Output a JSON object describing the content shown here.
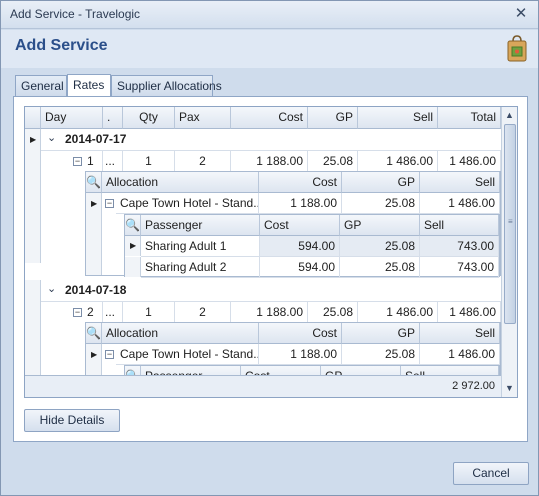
{
  "window": {
    "title": "Add Service - Travelogic"
  },
  "header": {
    "title": "Add Service",
    "icon": "shopping-bag-icon"
  },
  "tabs": [
    {
      "label": "General",
      "active": false
    },
    {
      "label": "Rates",
      "active": true
    },
    {
      "label": "Supplier Allocations",
      "active": false
    }
  ],
  "grid": {
    "columns": [
      "Day",
      ".",
      "Qty",
      "Pax",
      "Cost",
      "GP",
      "Sell",
      "Total"
    ],
    "groups": [
      {
        "date": "2014-07-17",
        "row": {
          "day": "1",
          "dot": "...",
          "qty": "1",
          "pax": "2",
          "cost": "1 188.00",
          "gp": "25.08",
          "sell": "1 486.00",
          "total": "1 486.00"
        },
        "allocation_columns": [
          "Allocation",
          "Cost",
          "GP",
          "Sell"
        ],
        "allocation": {
          "name": "Cape Town Hotel  - Stand...",
          "cost": "1 188.00",
          "gp": "25.08",
          "sell": "1 486.00"
        },
        "passenger_columns": [
          "Passenger",
          "Cost",
          "GP",
          "Sell"
        ],
        "passengers": [
          {
            "name": "Sharing Adult 1",
            "cost": "594.00",
            "gp": "25.08",
            "sell": "743.00"
          },
          {
            "name": "Sharing Adult 2",
            "cost": "594.00",
            "gp": "25.08",
            "sell": "743.00"
          }
        ]
      },
      {
        "date": "2014-07-18",
        "row": {
          "day": "2",
          "dot": "...",
          "qty": "1",
          "pax": "2",
          "cost": "1 188.00",
          "gp": "25.08",
          "sell": "1 486.00",
          "total": "1 486.00"
        },
        "allocation_columns": [
          "Allocation",
          "Cost",
          "GP",
          "Sell"
        ],
        "allocation": {
          "name": "Cape Town Hotel  - Stand...",
          "cost": "1 188.00",
          "gp": "25.08",
          "sell": "1 486.00"
        },
        "passenger_columns": [
          "Passenger",
          "Cost",
          "GP",
          "Sell"
        ]
      }
    ],
    "grand_total": "2 972.00"
  },
  "buttons": {
    "hide_details": "Hide Details",
    "cancel": "Cancel"
  }
}
